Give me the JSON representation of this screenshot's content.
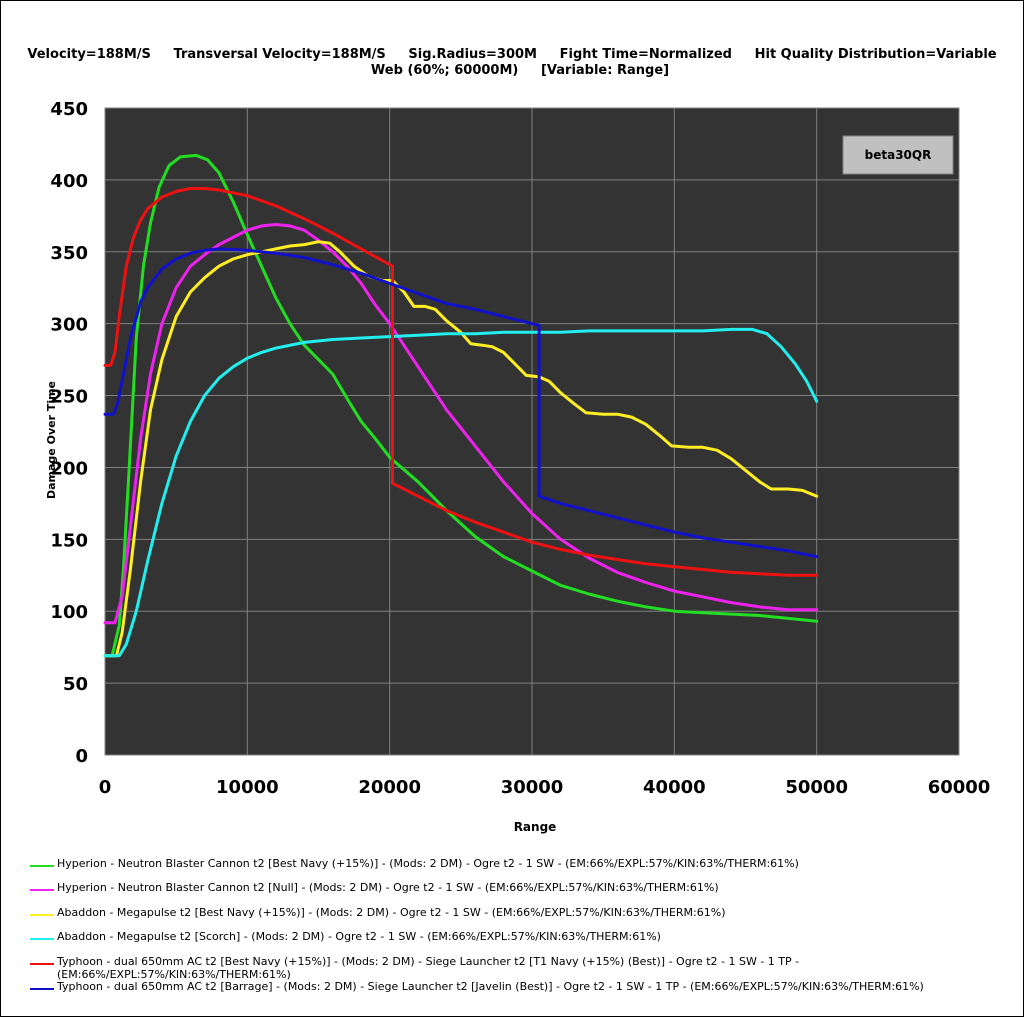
{
  "chart_data": {
    "type": "line",
    "title_line1": "Velocity=188M/S     Transversal Velocity=188M/S     Sig.Radius=300M     Fight Time=Normalized     Hit Quality Distribution=Variable",
    "title_line2": "Web (60%; 60000M)     [Variable: Range]",
    "xlabel": "Range",
    "ylabel": "Damage Over Time",
    "xlim": [
      0,
      60000
    ],
    "ylim": [
      0,
      450
    ],
    "xticks": [
      "0",
      "10000",
      "20000",
      "30000",
      "40000",
      "50000",
      "60000"
    ],
    "yticks": [
      "0",
      "50",
      "100",
      "150",
      "200",
      "250",
      "300",
      "350",
      "400",
      "450"
    ],
    "plot_background": "#333333",
    "grid": true,
    "watermark": "beta30QR",
    "series": [
      {
        "name": "Hyperion - Neutron Blaster Cannon t2 [Best Navy (+15%)] - (Mods: 2 DM) - Ogre t2 - 1 SW - (EM:66%/EXPL:57%/KIN:63%/THERM:61%)",
        "color": "#22dd22",
        "points": [
          [
            0,
            69
          ],
          [
            500,
            69
          ],
          [
            1000,
            90
          ],
          [
            1300,
            130
          ],
          [
            1700,
            200
          ],
          [
            2200,
            290
          ],
          [
            2700,
            340
          ],
          [
            3200,
            370
          ],
          [
            3800,
            395
          ],
          [
            4500,
            410
          ],
          [
            5300,
            416
          ],
          [
            6400,
            417
          ],
          [
            7200,
            414
          ],
          [
            8000,
            405
          ],
          [
            9000,
            385
          ],
          [
            10000,
            362
          ],
          [
            11000,
            340
          ],
          [
            12000,
            318
          ],
          [
            13000,
            300
          ],
          [
            14000,
            285
          ],
          [
            15000,
            275
          ],
          [
            16000,
            265
          ],
          [
            17000,
            248
          ],
          [
            18000,
            232
          ],
          [
            19000,
            220
          ],
          [
            20000,
            207
          ],
          [
            22000,
            190
          ],
          [
            24000,
            170
          ],
          [
            26000,
            152
          ],
          [
            28000,
            138
          ],
          [
            30000,
            128
          ],
          [
            32000,
            118
          ],
          [
            34000,
            112
          ],
          [
            36000,
            107
          ],
          [
            38000,
            103
          ],
          [
            40000,
            100
          ],
          [
            42000,
            99
          ],
          [
            44000,
            98
          ],
          [
            46000,
            97
          ],
          [
            48000,
            95
          ],
          [
            50000,
            93
          ]
        ]
      },
      {
        "name": "Hyperion - Neutron Blaster Cannon t2 [Null] - (Mods: 2 DM) - Ogre t2 - 1 SW - (EM:66%/EXPL:57%/KIN:63%/THERM:61%)",
        "color": "#ee22ee",
        "points": [
          [
            0,
            92
          ],
          [
            700,
            92
          ],
          [
            1200,
            110
          ],
          [
            1800,
            160
          ],
          [
            2500,
            220
          ],
          [
            3200,
            265
          ],
          [
            4000,
            300
          ],
          [
            5000,
            325
          ],
          [
            6000,
            340
          ],
          [
            7000,
            348
          ],
          [
            8000,
            355
          ],
          [
            9000,
            360
          ],
          [
            10000,
            365
          ],
          [
            11000,
            368
          ],
          [
            12000,
            369
          ],
          [
            13000,
            368
          ],
          [
            14000,
            365
          ],
          [
            15000,
            358
          ],
          [
            16000,
            350
          ],
          [
            17000,
            340
          ],
          [
            18000,
            328
          ],
          [
            19000,
            313
          ],
          [
            20000,
            300
          ],
          [
            22000,
            270
          ],
          [
            24000,
            240
          ],
          [
            26000,
            215
          ],
          [
            28000,
            190
          ],
          [
            30000,
            168
          ],
          [
            32000,
            150
          ],
          [
            34000,
            137
          ],
          [
            36000,
            127
          ],
          [
            38000,
            120
          ],
          [
            40000,
            114
          ],
          [
            42000,
            110
          ],
          [
            44000,
            106
          ],
          [
            46000,
            103
          ],
          [
            48000,
            101
          ],
          [
            50000,
            101
          ]
        ]
      },
      {
        "name": "Abaddon - Megapulse t2 [Best Navy (+15%)] - (Mods: 2 DM) - Ogre t2 - 1 SW - (EM:66%/EXPL:57%/KIN:63%/THERM:61%)",
        "color": "#ffee22",
        "points": [
          [
            0,
            69
          ],
          [
            800,
            69
          ],
          [
            1200,
            85
          ],
          [
            1800,
            130
          ],
          [
            2500,
            190
          ],
          [
            3200,
            240
          ],
          [
            4000,
            275
          ],
          [
            5000,
            305
          ],
          [
            6000,
            322
          ],
          [
            7000,
            332
          ],
          [
            8000,
            340
          ],
          [
            9000,
            345
          ],
          [
            10000,
            348
          ],
          [
            11000,
            350
          ],
          [
            12000,
            352
          ],
          [
            13000,
            354
          ],
          [
            14000,
            355
          ],
          [
            15000,
            357
          ],
          [
            15800,
            356
          ],
          [
            16500,
            350
          ],
          [
            17500,
            340
          ],
          [
            18500,
            333
          ],
          [
            19500,
            330
          ],
          [
            20200,
            330
          ],
          [
            21000,
            322
          ],
          [
            21700,
            312
          ],
          [
            22500,
            312
          ],
          [
            23200,
            310
          ],
          [
            24000,
            302
          ],
          [
            25000,
            294
          ],
          [
            25700,
            286
          ],
          [
            26500,
            285
          ],
          [
            27200,
            284
          ],
          [
            28000,
            280
          ],
          [
            29000,
            270
          ],
          [
            29600,
            264
          ],
          [
            30500,
            263
          ],
          [
            31200,
            260
          ],
          [
            32000,
            252
          ],
          [
            33000,
            244
          ],
          [
            33800,
            238
          ],
          [
            35000,
            237
          ],
          [
            36000,
            237
          ],
          [
            37000,
            235
          ],
          [
            38000,
            230
          ],
          [
            39000,
            222
          ],
          [
            39800,
            215
          ],
          [
            41000,
            214
          ],
          [
            42000,
            214
          ],
          [
            43000,
            212
          ],
          [
            44000,
            206
          ],
          [
            45000,
            198
          ],
          [
            46000,
            190
          ],
          [
            46800,
            185
          ],
          [
            48000,
            185
          ],
          [
            49000,
            184
          ],
          [
            50000,
            180
          ]
        ]
      },
      {
        "name": "Abaddon - Megapulse t2 [Scorch] - (Mods: 2 DM) - Ogre t2 - 1 SW - (EM:66%/EXPL:57%/KIN:63%/THERM:61%)",
        "color": "#22eeee",
        "points": [
          [
            0,
            69
          ],
          [
            1000,
            69
          ],
          [
            1500,
            77
          ],
          [
            2200,
            100
          ],
          [
            3000,
            135
          ],
          [
            4000,
            175
          ],
          [
            5000,
            208
          ],
          [
            6000,
            232
          ],
          [
            7000,
            250
          ],
          [
            8000,
            262
          ],
          [
            9000,
            270
          ],
          [
            10000,
            276
          ],
          [
            11000,
            280
          ],
          [
            12000,
            283
          ],
          [
            14000,
            287
          ],
          [
            16000,
            289
          ],
          [
            18000,
            290
          ],
          [
            20000,
            291
          ],
          [
            22000,
            292
          ],
          [
            24000,
            293
          ],
          [
            26000,
            293
          ],
          [
            28000,
            294
          ],
          [
            30000,
            294
          ],
          [
            32000,
            294
          ],
          [
            34000,
            295
          ],
          [
            36000,
            295
          ],
          [
            38000,
            295
          ],
          [
            40000,
            295
          ],
          [
            42000,
            295
          ],
          [
            44000,
            296
          ],
          [
            45500,
            296
          ],
          [
            46500,
            293
          ],
          [
            47500,
            284
          ],
          [
            48500,
            272
          ],
          [
            49300,
            260
          ],
          [
            50000,
            246
          ]
        ]
      },
      {
        "name": "Typhoon - dual 650mm AC t2 [Best Navy (+15%)] - (Mods: 2 DM) - Siege Launcher t2 [T1 Navy (+15%) (Best)] - Ogre t2 - 1 SW - 1 TP - (EM:66%/EXPL:57%/KIN:63%/THERM:61%)",
        "color": "#ee1111",
        "points": [
          [
            0,
            271
          ],
          [
            400,
            271
          ],
          [
            700,
            280
          ],
          [
            1000,
            305
          ],
          [
            1500,
            340
          ],
          [
            2000,
            360
          ],
          [
            2500,
            372
          ],
          [
            3000,
            380
          ],
          [
            4000,
            388
          ],
          [
            5000,
            392
          ],
          [
            6000,
            394
          ],
          [
            7000,
            394
          ],
          [
            8000,
            393
          ],
          [
            10000,
            389
          ],
          [
            12000,
            382
          ],
          [
            14000,
            373
          ],
          [
            16000,
            363
          ],
          [
            18000,
            352
          ],
          [
            20200,
            340
          ],
          [
            20200,
            189
          ],
          [
            22000,
            180
          ],
          [
            24000,
            170
          ],
          [
            26000,
            162
          ],
          [
            28000,
            155
          ],
          [
            30000,
            148
          ],
          [
            32000,
            143
          ],
          [
            34000,
            139
          ],
          [
            36000,
            136
          ],
          [
            38000,
            133
          ],
          [
            40000,
            131
          ],
          [
            42000,
            129
          ],
          [
            44000,
            127
          ],
          [
            46000,
            126
          ],
          [
            48000,
            125
          ],
          [
            50000,
            125
          ]
        ]
      },
      {
        "name": "Typhoon - dual 650mm AC t2 [Barrage] - (Mods: 2 DM) - Siege Launcher t2 [Javelin (Best)] - Ogre t2 - 1 SW - 1 TP - (EM:66%/EXPL:57%/KIN:63%/THERM:61%)",
        "color": "#1111cc",
        "points": [
          [
            0,
            237
          ],
          [
            600,
            237
          ],
          [
            900,
            245
          ],
          [
            1300,
            265
          ],
          [
            1800,
            290
          ],
          [
            2500,
            315
          ],
          [
            3000,
            325
          ],
          [
            4000,
            338
          ],
          [
            5000,
            345
          ],
          [
            6000,
            349
          ],
          [
            7000,
            351
          ],
          [
            8000,
            352
          ],
          [
            10000,
            351
          ],
          [
            12000,
            349
          ],
          [
            14000,
            346
          ],
          [
            16000,
            341
          ],
          [
            18000,
            335
          ],
          [
            20000,
            328
          ],
          [
            22000,
            321
          ],
          [
            24000,
            314
          ],
          [
            26000,
            310
          ],
          [
            28000,
            305
          ],
          [
            30000,
            300
          ],
          [
            30500,
            299
          ],
          [
            30500,
            180
          ],
          [
            32000,
            175
          ],
          [
            34000,
            170
          ],
          [
            36000,
            165
          ],
          [
            38000,
            160
          ],
          [
            40000,
            155
          ],
          [
            42000,
            151
          ],
          [
            44000,
            148
          ],
          [
            46000,
            145
          ],
          [
            48000,
            142
          ],
          [
            50000,
            138
          ]
        ]
      }
    ]
  }
}
